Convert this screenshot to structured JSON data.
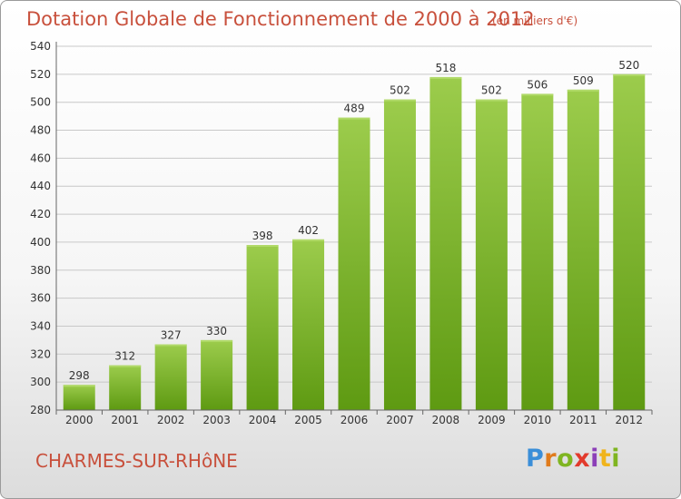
{
  "title": "Dotation Globale de Fonctionnement de 2000 à 2012",
  "subtitle": "(en milliers d'€)",
  "place": "CHARMES-SUR-RHôNE",
  "logo": "Proxiti",
  "colors": {
    "bar_top": "#9ccc4c",
    "bar_bottom": "#5e9a12",
    "text": "#c8503c"
  },
  "chart_data": {
    "type": "bar",
    "title": "Dotation Globale de Fonctionnement de 2000 à 2012",
    "subtitle": "(en milliers d'€)",
    "xlabel": "",
    "ylabel": "",
    "categories": [
      "2000",
      "2001",
      "2002",
      "2003",
      "2004",
      "2005",
      "2006",
      "2007",
      "2008",
      "2009",
      "2010",
      "2011",
      "2012"
    ],
    "values": [
      298,
      312,
      327,
      330,
      398,
      402,
      489,
      502,
      518,
      502,
      506,
      509,
      520
    ],
    "ylim": [
      280,
      540
    ],
    "yticks": [
      280,
      300,
      320,
      340,
      360,
      380,
      400,
      420,
      440,
      460,
      480,
      500,
      520,
      540
    ],
    "grid": true,
    "data_labels": true
  }
}
